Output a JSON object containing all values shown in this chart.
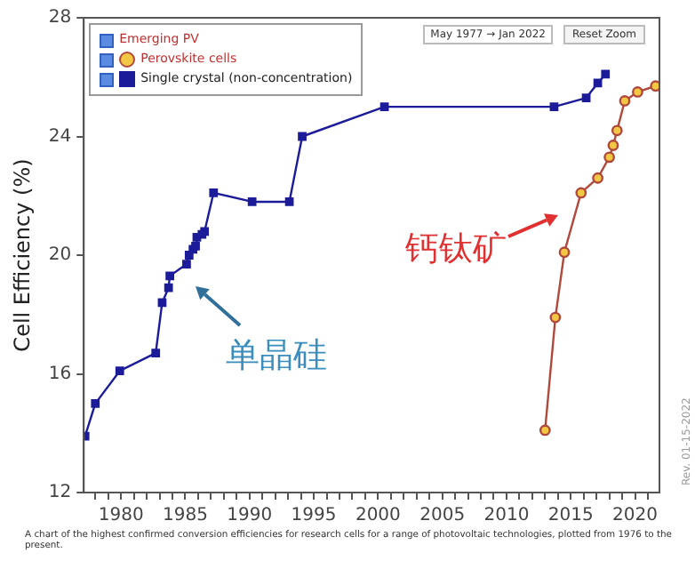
{
  "chart_data": {
    "type": "line",
    "ylabel": "Cell Efficiency (%)",
    "xlim": [
      1977.1,
      2021.9
    ],
    "ylim": [
      12,
      28
    ],
    "xticks": [
      {
        "value": 1978,
        "label": null
      },
      {
        "value": 1979,
        "label": null
      },
      1980,
      {
        "value": 1981,
        "label": null
      },
      {
        "value": 1982,
        "label": null
      },
      {
        "value": 1983,
        "label": null
      },
      {
        "value": 1984,
        "label": null
      },
      1985,
      {
        "value": 1986,
        "label": null
      },
      {
        "value": 1987,
        "label": null
      },
      {
        "value": 1988,
        "label": null
      },
      {
        "value": 1989,
        "label": null
      },
      1990,
      {
        "value": 1991,
        "label": null
      },
      {
        "value": 1992,
        "label": null
      },
      {
        "value": 1993,
        "label": null
      },
      {
        "value": 1994,
        "label": null
      },
      1995,
      {
        "value": 1996,
        "label": null
      },
      {
        "value": 1997,
        "label": null
      },
      {
        "value": 1998,
        "label": null
      },
      {
        "value": 1999,
        "label": null
      },
      2000,
      {
        "value": 2001,
        "label": null
      },
      {
        "value": 2002,
        "label": null
      },
      {
        "value": 2003,
        "label": null
      },
      {
        "value": 2004,
        "label": null
      },
      2005,
      {
        "value": 2006,
        "label": null
      },
      {
        "value": 2007,
        "label": null
      },
      {
        "value": 2008,
        "label": null
      },
      {
        "value": 2009,
        "label": null
      },
      2010,
      {
        "value": 2011,
        "label": null
      },
      {
        "value": 2012,
        "label": null
      },
      {
        "value": 2013,
        "label": null
      },
      {
        "value": 2014,
        "label": null
      },
      2015,
      {
        "value": 2016,
        "label": null
      },
      {
        "value": 2017,
        "label": null
      },
      {
        "value": 2018,
        "label": null
      },
      {
        "value": 2019,
        "label": null
      },
      2020,
      {
        "value": 2021,
        "label": null
      }
    ],
    "yticks": [
      12,
      16,
      20,
      24,
      28
    ],
    "grid": false,
    "legend": "top left",
    "line_style": "solid",
    "series": [
      {
        "name": "Single crystal (non-concentration)",
        "color": "#1c1c9a",
        "marker": "square",
        "x": [
          1977.2,
          1978.0,
          1979.9,
          1982.7,
          1983.2,
          1983.7,
          1983.8,
          1985.1,
          1985.3,
          1985.6,
          1985.8,
          1985.9,
          1986.3,
          1986.5,
          1987.2,
          1990.2,
          1993.1,
          1994.1,
          2000.5,
          2013.7,
          2016.2,
          2017.1,
          2017.7
        ],
        "values": [
          13.9,
          15.0,
          16.1,
          16.7,
          18.4,
          18.9,
          19.3,
          19.7,
          20.0,
          20.2,
          20.3,
          20.6,
          20.7,
          20.8,
          22.1,
          21.8,
          21.8,
          24.0,
          25.0,
          25.0,
          25.3,
          25.8,
          26.1
        ]
      },
      {
        "name": "Perovskite cells",
        "color": "#b0483c",
        "marker": "circle",
        "x": [
          2013.0,
          2013.8,
          2014.5,
          2015.8,
          2017.1,
          2018.0,
          2018.3,
          2018.6,
          2019.2,
          2020.2,
          2021.6
        ],
        "values": [
          14.1,
          17.9,
          20.1,
          22.1,
          22.6,
          23.3,
          23.7,
          24.2,
          25.2,
          25.5,
          25.7
        ]
      }
    ],
    "annotations": [
      "单晶硅",
      "钙钛矿",
      "May 1977 → Jan 2022",
      "Reset Zoom",
      "A chart of the highest confirmed conversion efficiencies for research cells for a range of photovoltaic technologies, plotted from 1976 to the present.",
      "Rev. 01-15-2022",
      "Emerging PV"
    ]
  }
}
